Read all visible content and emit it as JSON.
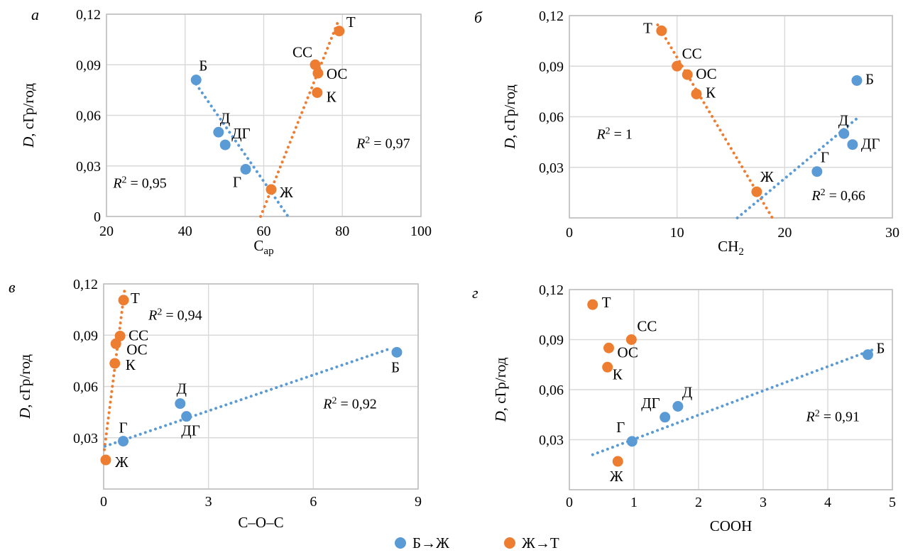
{
  "colors": {
    "blue": "#5B9BD5",
    "orange": "#ED7D31",
    "grid": "#D9D9D9",
    "border": "#BFBFBF",
    "text": "#000000"
  },
  "legend": {
    "items": [
      {
        "label": "Б→Ж",
        "series": "blue"
      },
      {
        "label": "Ж→Т",
        "series": "orange"
      }
    ]
  },
  "chart_data": [
    {
      "type": "scatter",
      "letter": "а",
      "ylabel": {
        "italic": "D",
        "rest": ", сГр/год"
      },
      "xlabel": [
        {
          "t": "С"
        },
        {
          "t": "ар",
          "sub": true
        }
      ],
      "xlim": [
        20,
        100
      ],
      "xticks": [
        20,
        40,
        60,
        80,
        100
      ],
      "xtick_labels": [
        "20",
        "40",
        "60",
        "80",
        "100"
      ],
      "ylim": [
        0,
        0.12
      ],
      "yticks": [
        0,
        0.03,
        0.06,
        0.09,
        0.12
      ],
      "ytick_labels": [
        "0",
        "0,03",
        "0,06",
        "0,09",
        "0,12"
      ],
      "grid": true,
      "series": [
        {
          "color_key": "blue",
          "name": "Б→Ж",
          "points": [
            {
              "label": "Б",
              "x": 42.8,
              "y": 0.081,
              "lp": [
                4,
                -13,
                "start"
              ]
            },
            {
              "label": "Д",
              "x": 48.5,
              "y": 0.05,
              "lp": [
                2,
                -13,
                "start"
              ]
            },
            {
              "label": "ДГ",
              "x": 50.2,
              "y": 0.0425,
              "lp": [
                9,
                -9,
                "start"
              ]
            },
            {
              "label": "Г",
              "x": 55.4,
              "y": 0.028,
              "lp": [
                -6,
                25,
                "end"
              ]
            }
          ],
          "trend": {
            "x1": 42.8,
            "y1": 0.0785,
            "x2": 66.2,
            "y2": 0
          },
          "r2": {
            "value": "0,95",
            "x": 28.5,
            "y": 0.02
          }
        },
        {
          "color_key": "orange",
          "name": "Ж→Т",
          "points": [
            {
              "label": "Ж",
              "x": 61.9,
              "y": 0.016,
              "lp": [
                12,
                11,
                "start"
              ]
            },
            {
              "label": "К",
              "x": 73.6,
              "y": 0.0735,
              "lp": [
                13,
                13,
                "start"
              ]
            },
            {
              "label": "ОС",
              "x": 73.8,
              "y": 0.085,
              "lp": [
                12,
                8,
                "start"
              ]
            },
            {
              "label": "СС",
              "x": 73.1,
              "y": 0.09,
              "lp": [
                -4,
                -11,
                "end"
              ]
            },
            {
              "label": "Т",
              "x": 79.2,
              "y": 0.11,
              "lp": [
                10,
                -6,
                "start"
              ]
            }
          ],
          "trend": {
            "x1": 59.2,
            "y1": 0,
            "x2": 78.8,
            "y2": 0.115
          },
          "r2": {
            "value": "0,97",
            "x": 90.4,
            "y": 0.0435
          }
        }
      ]
    },
    {
      "type": "scatter",
      "letter": "б",
      "ylabel": {
        "italic": "D",
        "rest": ", сГр/год"
      },
      "xlabel": [
        {
          "t": "СН"
        },
        {
          "t": "2",
          "sub": true
        }
      ],
      "xlim": [
        0,
        30
      ],
      "xticks": [
        0,
        10,
        20,
        30
      ],
      "xtick_labels": [
        "0",
        "10",
        "20",
        "30"
      ],
      "ylim": [
        0,
        0.12
      ],
      "yticks": [
        0,
        0.03,
        0.06,
        0.09,
        0.12
      ],
      "ytick_labels": [
        "",
        "0,03",
        "0,06",
        "0,09",
        "0,12"
      ],
      "grid": true,
      "series": [
        {
          "color_key": "orange",
          "name": "Ж→Т",
          "points": [
            {
              "label": "Т",
              "x": 8.56,
              "y": 0.111,
              "lp": [
                -13,
                3,
                "end"
              ]
            },
            {
              "label": "СС",
              "x": 10.0,
              "y": 0.09,
              "lp": [
                7,
                -11,
                "start"
              ]
            },
            {
              "label": "ОС",
              "x": 10.96,
              "y": 0.085,
              "lp": [
                12,
                6,
                "start"
              ]
            },
            {
              "label": "К",
              "x": 11.8,
              "y": 0.0735,
              "lp": [
                13,
                5,
                "start"
              ]
            },
            {
              "label": "Ж",
              "x": 17.4,
              "y": 0.0155,
              "lp": [
                5,
                -14,
                "start"
              ]
            }
          ],
          "trend": {
            "x1": 8.2,
            "y1": 0.1145,
            "x2": 18.85,
            "y2": 0
          },
          "r2": {
            "value": "1",
            "x": 4.2,
            "y": 0.05
          }
        },
        {
          "color_key": "blue",
          "name": "Б→Ж",
          "points": [
            {
              "label": "Г",
              "x": 23.0,
              "y": 0.0275,
              "lp": [
                5,
                -13,
                "start"
              ]
            },
            {
              "label": "Д",
              "x": 25.5,
              "y": 0.05,
              "lp": [
                -8,
                -12,
                "start"
              ]
            },
            {
              "label": "ДГ",
              "x": 26.3,
              "y": 0.0435,
              "lp": [
                12,
                6,
                "start"
              ]
            },
            {
              "label": "Б",
              "x": 26.7,
              "y": 0.0815,
              "lp": [
                12,
                5,
                "start"
              ]
            }
          ],
          "trend": {
            "x1": 15.6,
            "y1": 0,
            "x2": 26.9,
            "y2": 0.06
          },
          "r2": {
            "value": "0,66",
            "x": 25.0,
            "y": 0.0135
          }
        }
      ]
    },
    {
      "type": "scatter",
      "letter": "в",
      "ylabel": {
        "italic": "D",
        "rest": ", сГр/год"
      },
      "xlabel": [
        {
          "t": "С–О–С"
        }
      ],
      "xlim": [
        0,
        9
      ],
      "xticks": [
        0,
        3,
        6,
        9
      ],
      "xtick_labels": [
        "0",
        "3",
        "6",
        "9"
      ],
      "ylim": [
        0,
        0.12
      ],
      "yticks": [
        0,
        0.03,
        0.06,
        0.09,
        0.12
      ],
      "ytick_labels": [
        "",
        "0,03",
        "0,06",
        "0,09",
        "0,12"
      ],
      "grid": true,
      "series": [
        {
          "color_key": "orange",
          "name": "Ж→Т",
          "points": [
            {
              "label": "Ж",
              "x": 0.06,
              "y": 0.017,
              "lp": [
                13,
                10,
                "start"
              ]
            },
            {
              "label": "К",
              "x": 0.32,
              "y": 0.0735,
              "lp": [
                15,
                9,
                "start"
              ]
            },
            {
              "label": "ОС",
              "x": 0.35,
              "y": 0.085,
              "lp": [
                15,
                15,
                "start"
              ]
            },
            {
              "label": "СС",
              "x": 0.47,
              "y": 0.0895,
              "lp": [
                12,
                6,
                "start"
              ]
            },
            {
              "label": "Т",
              "x": 0.57,
              "y": 0.1105,
              "lp": [
                10,
                4,
                "start"
              ]
            }
          ],
          "trend": {
            "x1": 0.02,
            "y1": 0.023,
            "x2": 0.61,
            "y2": 0.118
          },
          "r2": {
            "value": "0,94",
            "x": 2.05,
            "y": 0.102
          }
        },
        {
          "color_key": "blue",
          "name": "Б→Ж",
          "points": [
            {
              "label": "Г",
              "x": 0.56,
              "y": 0.028,
              "lp": [
                0,
                -12,
                "middle"
              ]
            },
            {
              "label": "Д",
              "x": 2.19,
              "y": 0.05,
              "lp": [
                2,
                -14,
                "middle"
              ]
            },
            {
              "label": "ДГ",
              "x": 2.37,
              "y": 0.0425,
              "lp": [
                6,
                27,
                "middle"
              ]
            },
            {
              "label": "Б",
              "x": 8.39,
              "y": 0.08,
              "lp": [
                -2,
                28,
                "middle"
              ]
            }
          ],
          "trend": {
            "x1": 0.04,
            "y1": 0.025,
            "x2": 8.25,
            "y2": 0.0825
          },
          "r2": {
            "value": "0,92",
            "x": 7.05,
            "y": 0.05
          }
        }
      ]
    },
    {
      "type": "scatter",
      "letter": "г",
      "ylabel": {
        "italic": "D",
        "rest": ", сГр/год"
      },
      "xlabel": [
        {
          "t": "СООН"
        }
      ],
      "xlim": [
        0,
        5
      ],
      "xticks": [
        0,
        1,
        2,
        3,
        4,
        5
      ],
      "xtick_labels": [
        "0",
        "1",
        "2",
        "3",
        "4",
        "5"
      ],
      "ylim": [
        0,
        0.12
      ],
      "yticks": [
        0,
        0.03,
        0.06,
        0.09,
        0.12
      ],
      "ytick_labels": [
        "",
        "0,03",
        "0,06",
        "0,09",
        "0,12"
      ],
      "grid": true,
      "series": [
        {
          "color_key": "orange",
          "name": "Ж→Т",
          "points": [
            {
              "label": "Т",
              "x": 0.36,
              "y": 0.111,
              "lp": [
                13,
                4,
                "start"
              ]
            },
            {
              "label": "СС",
              "x": 0.96,
              "y": 0.09,
              "lp": [
                8,
                -12,
                "start"
              ]
            },
            {
              "label": "ОС",
              "x": 0.61,
              "y": 0.085,
              "lp": [
                12,
                13,
                "start"
              ]
            },
            {
              "label": "К",
              "x": 0.59,
              "y": 0.0735,
              "lp": [
                7,
                17,
                "start"
              ]
            },
            {
              "label": "Ж",
              "x": 0.75,
              "y": 0.017,
              "lp": [
                -2,
                28,
                "middle"
              ]
            }
          ],
          "trend": null,
          "r2": null
        },
        {
          "color_key": "blue",
          "name": "Б→Ж",
          "points": [
            {
              "label": "Г",
              "x": 0.97,
              "y": 0.029,
              "lp": [
                -10,
                -13,
                "end"
              ]
            },
            {
              "label": "ДГ",
              "x": 1.48,
              "y": 0.0435,
              "lp": [
                -7,
                -13,
                "end"
              ]
            },
            {
              "label": "Д",
              "x": 1.68,
              "y": 0.05,
              "lp": [
                6,
                -13,
                "start"
              ]
            },
            {
              "label": "Б",
              "x": 4.62,
              "y": 0.081,
              "lp": [
                12,
                -2,
                "start"
              ]
            }
          ],
          "trend": {
            "x1": 0.36,
            "y1": 0.021,
            "x2": 4.72,
            "y2": 0.0843
          },
          "r2": {
            "value": "0,91",
            "x": 4.08,
            "y": 0.044
          }
        }
      ]
    }
  ]
}
